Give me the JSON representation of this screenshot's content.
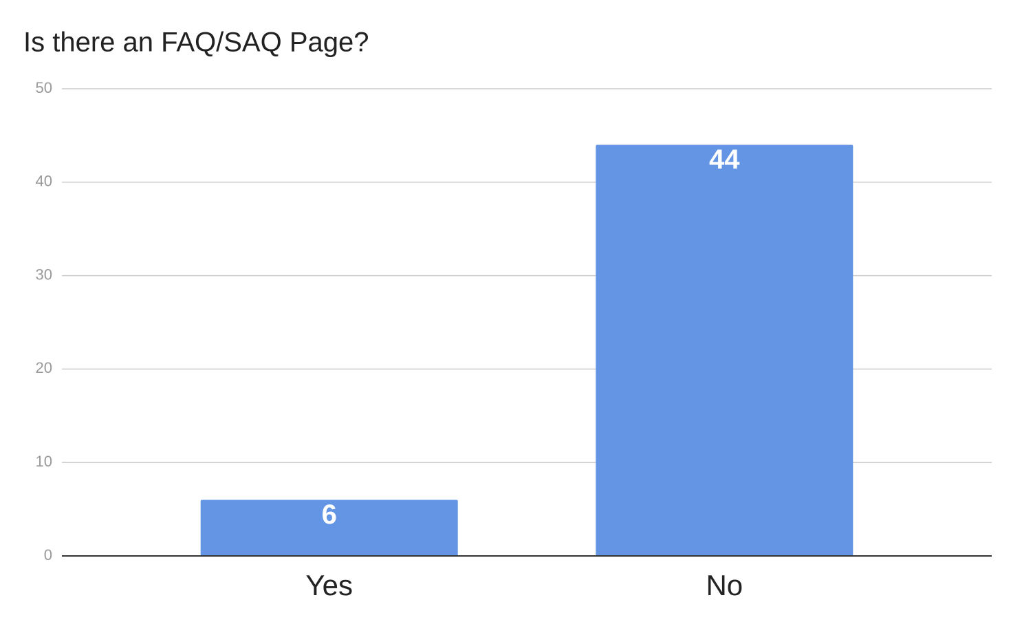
{
  "chart_data": {
    "type": "bar",
    "title": "Is there an FAQ/SAQ Page?",
    "categories": [
      "Yes",
      "No"
    ],
    "values": [
      6,
      44
    ],
    "color": "#6495e5",
    "ylim": [
      0,
      50
    ],
    "yticks": [
      0,
      10,
      20,
      30,
      40,
      50
    ],
    "grid": true,
    "data_labels": true
  }
}
